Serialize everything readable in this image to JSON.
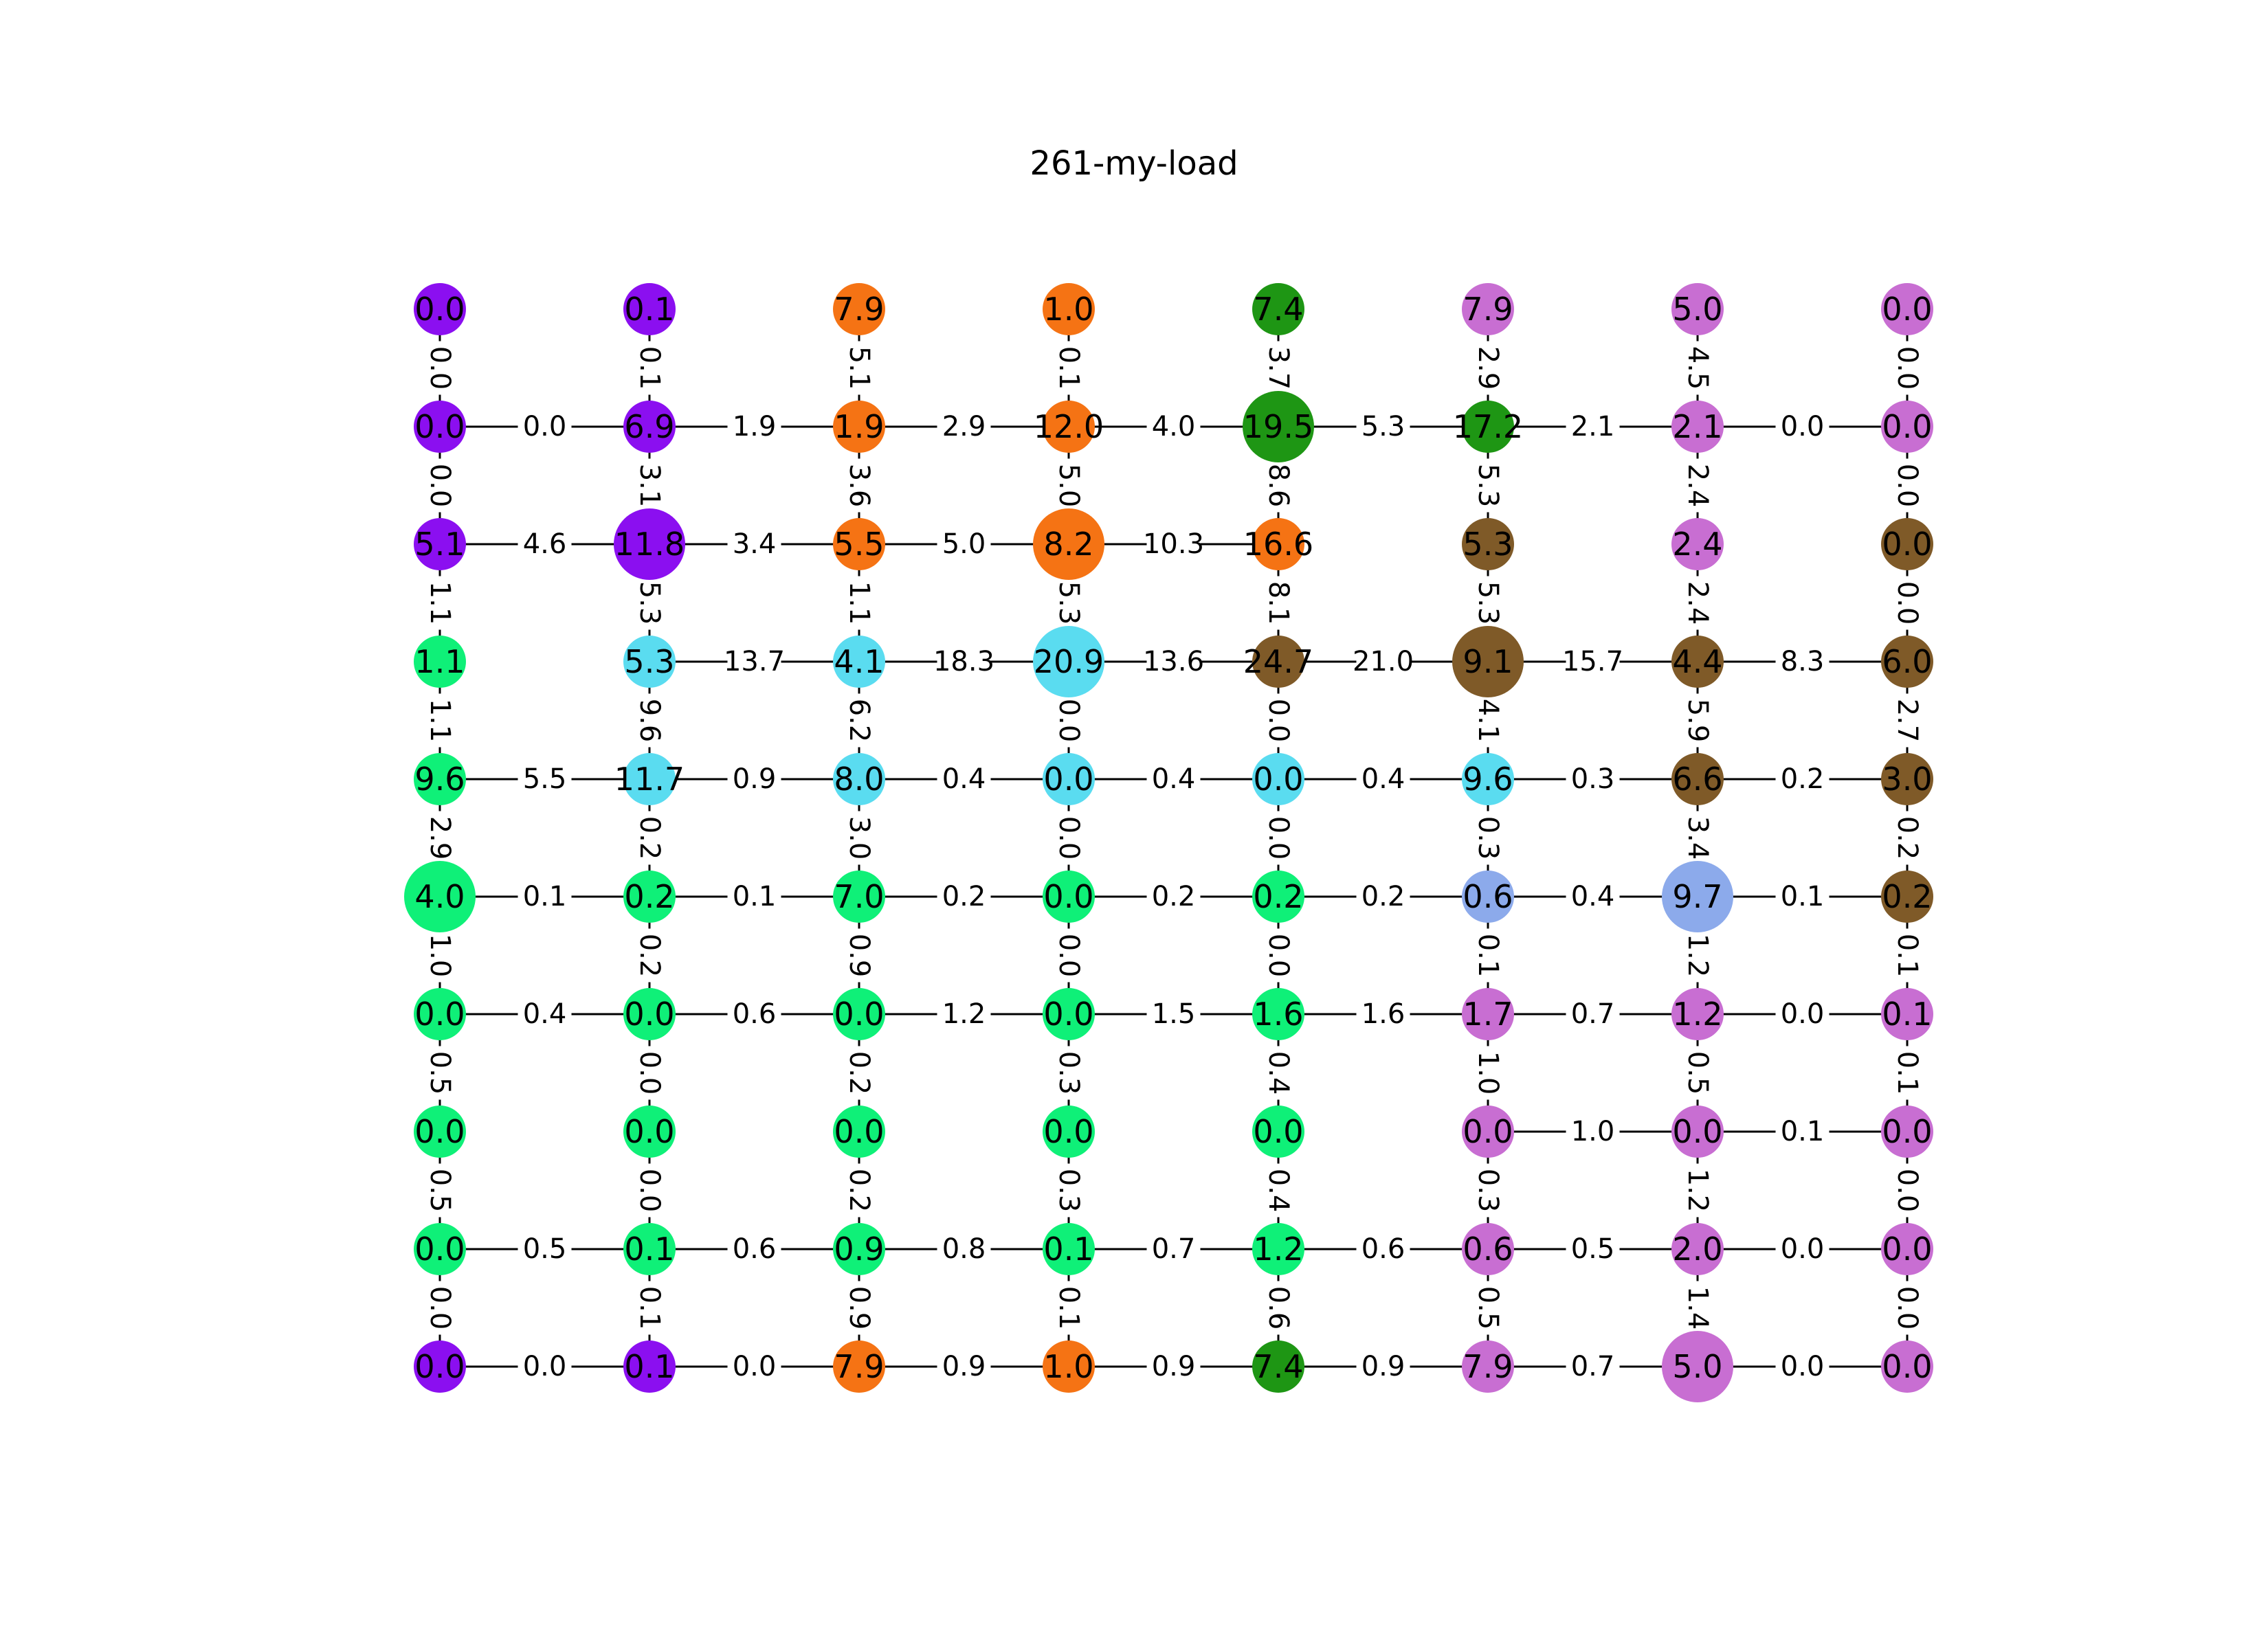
{
  "title": "261-my-load",
  "colors": {
    "purple": "#8b0ff0",
    "orange": "#f57314",
    "green": "#1e9614",
    "pink": "#c86ed2",
    "brown": "#7f5a28",
    "lime": "#0ff078",
    "cyan": "#5adcf0",
    "periwinkle": "#8caaeb",
    "edge": "#000000",
    "edge_label_bg": "#ffffff"
  },
  "chart_data": {
    "type": "grid-graph",
    "columns": 8,
    "rows": 10,
    "nodes": [
      [
        {
          "v": "0.0",
          "c": "purple",
          "w": 0
        },
        {
          "v": "0.1",
          "c": "purple",
          "w": 0
        },
        {
          "v": "7.9",
          "c": "orange",
          "w": 0
        },
        {
          "v": "1.0",
          "c": "orange",
          "w": 0
        },
        {
          "v": "7.4",
          "c": "green",
          "w": 0
        },
        {
          "v": "7.9",
          "c": "pink",
          "w": 0
        },
        {
          "v": "5.0",
          "c": "pink",
          "w": 0
        },
        {
          "v": "0.0",
          "c": "pink",
          "w": 0
        }
      ],
      [
        {
          "v": "0.0",
          "c": "purple",
          "w": 0
        },
        {
          "v": "6.9",
          "c": "purple",
          "w": 0
        },
        {
          "v": "1.9",
          "c": "orange",
          "w": 0
        },
        {
          "v": "12.0",
          "c": "orange",
          "w": 0
        },
        {
          "v": "19.5",
          "c": "green",
          "w": 1
        },
        {
          "v": "17.2",
          "c": "green",
          "w": 0
        },
        {
          "v": "2.1",
          "c": "pink",
          "w": 0
        },
        {
          "v": "0.0",
          "c": "pink",
          "w": 0
        }
      ],
      [
        {
          "v": "5.1",
          "c": "purple",
          "w": 0
        },
        {
          "v": "11.8",
          "c": "purple",
          "w": 1
        },
        {
          "v": "5.5",
          "c": "orange",
          "w": 0
        },
        {
          "v": "8.2",
          "c": "orange",
          "w": 1
        },
        {
          "v": "16.6",
          "c": "orange",
          "w": 0
        },
        {
          "v": "5.3",
          "c": "brown",
          "w": 0
        },
        {
          "v": "2.4",
          "c": "pink",
          "w": 0
        },
        {
          "v": "0.0",
          "c": "brown",
          "w": 0
        }
      ],
      [
        {
          "v": "1.1",
          "c": "lime",
          "w": 0
        },
        {
          "v": "5.3",
          "c": "cyan",
          "w": 0
        },
        {
          "v": "4.1",
          "c": "cyan",
          "w": 0
        },
        {
          "v": "20.9",
          "c": "cyan",
          "w": 1
        },
        {
          "v": "24.7",
          "c": "brown",
          "w": 0
        },
        {
          "v": "9.1",
          "c": "brown",
          "w": 1
        },
        {
          "v": "4.4",
          "c": "brown",
          "w": 0
        },
        {
          "v": "6.0",
          "c": "brown",
          "w": 0
        }
      ],
      [
        {
          "v": "9.6",
          "c": "lime",
          "w": 0
        },
        {
          "v": "11.7",
          "c": "cyan",
          "w": 0
        },
        {
          "v": "8.0",
          "c": "cyan",
          "w": 0
        },
        {
          "v": "0.0",
          "c": "cyan",
          "w": 0
        },
        {
          "v": "0.0",
          "c": "cyan",
          "w": 0
        },
        {
          "v": "9.6",
          "c": "cyan",
          "w": 0
        },
        {
          "v": "6.6",
          "c": "brown",
          "w": 0
        },
        {
          "v": "3.0",
          "c": "brown",
          "w": 0
        }
      ],
      [
        {
          "v": "4.0",
          "c": "lime",
          "w": 1
        },
        {
          "v": "0.2",
          "c": "lime",
          "w": 0
        },
        {
          "v": "7.0",
          "c": "lime",
          "w": 0
        },
        {
          "v": "0.0",
          "c": "lime",
          "w": 0
        },
        {
          "v": "0.2",
          "c": "lime",
          "w": 0
        },
        {
          "v": "0.6",
          "c": "periwinkle",
          "w": 0
        },
        {
          "v": "9.7",
          "c": "periwinkle",
          "w": 1
        },
        {
          "v": "0.2",
          "c": "brown",
          "w": 0
        }
      ],
      [
        {
          "v": "0.0",
          "c": "lime",
          "w": 0
        },
        {
          "v": "0.0",
          "c": "lime",
          "w": 0
        },
        {
          "v": "0.0",
          "c": "lime",
          "w": 0
        },
        {
          "v": "0.0",
          "c": "lime",
          "w": 0
        },
        {
          "v": "1.6",
          "c": "lime",
          "w": 0
        },
        {
          "v": "1.7",
          "c": "pink",
          "w": 0
        },
        {
          "v": "1.2",
          "c": "pink",
          "w": 0
        },
        {
          "v": "0.1",
          "c": "pink",
          "w": 0
        }
      ],
      [
        {
          "v": "0.0",
          "c": "lime",
          "w": 0
        },
        {
          "v": "0.0",
          "c": "lime",
          "w": 0
        },
        {
          "v": "0.0",
          "c": "lime",
          "w": 0
        },
        {
          "v": "0.0",
          "c": "lime",
          "w": 0
        },
        {
          "v": "0.0",
          "c": "lime",
          "w": 0
        },
        {
          "v": "0.0",
          "c": "pink",
          "w": 0
        },
        {
          "v": "0.0",
          "c": "pink",
          "w": 0
        },
        {
          "v": "0.0",
          "c": "pink",
          "w": 0
        }
      ],
      [
        {
          "v": "0.0",
          "c": "lime",
          "w": 0
        },
        {
          "v": "0.1",
          "c": "lime",
          "w": 0
        },
        {
          "v": "0.9",
          "c": "lime",
          "w": 0
        },
        {
          "v": "0.1",
          "c": "lime",
          "w": 0
        },
        {
          "v": "1.2",
          "c": "lime",
          "w": 0
        },
        {
          "v": "0.6",
          "c": "pink",
          "w": 0
        },
        {
          "v": "2.0",
          "c": "pink",
          "w": 0
        },
        {
          "v": "0.0",
          "c": "pink",
          "w": 0
        }
      ],
      [
        {
          "v": "0.0",
          "c": "purple",
          "w": 0
        },
        {
          "v": "0.1",
          "c": "purple",
          "w": 0
        },
        {
          "v": "7.9",
          "c": "orange",
          "w": 0
        },
        {
          "v": "1.0",
          "c": "orange",
          "w": 0
        },
        {
          "v": "7.4",
          "c": "green",
          "w": 0
        },
        {
          "v": "7.9",
          "c": "pink",
          "w": 0
        },
        {
          "v": "5.0",
          "c": "pink",
          "w": 1
        },
        {
          "v": "0.0",
          "c": "pink",
          "w": 0
        }
      ]
    ],
    "horizontal_edges": [
      null,
      [
        "0.0",
        "1.9",
        "2.9",
        "4.0",
        "5.3",
        "2.1",
        "0.0"
      ],
      [
        "4.6",
        "3.4",
        "5.0",
        "10.3",
        null,
        null,
        null
      ],
      [
        null,
        "13.7",
        "18.3",
        "13.6",
        "21.0",
        "15.7",
        "8.3"
      ],
      [
        "5.5",
        "0.9",
        "0.4",
        "0.4",
        "0.4",
        "0.3",
        "0.2"
      ],
      [
        "0.1",
        "0.1",
        "0.2",
        "0.2",
        "0.2",
        "0.4",
        "0.1"
      ],
      [
        "0.4",
        "0.6",
        "1.2",
        "1.5",
        "1.6",
        "0.7",
        "0.0"
      ],
      [
        null,
        null,
        null,
        null,
        null,
        "1.0",
        "0.1"
      ],
      [
        "0.5",
        "0.6",
        "0.8",
        "0.7",
        "0.6",
        "0.5",
        "0.0"
      ],
      [
        "0.0",
        "0.0",
        "0.9",
        "0.9",
        "0.9",
        "0.7",
        "0.0"
      ]
    ],
    "vertical_edges": [
      [
        "0.0",
        "0.1",
        "5.1",
        "0.1",
        "3.7",
        "2.9",
        "4.5",
        "0.0"
      ],
      [
        "0.0",
        "3.1",
        "3.6",
        "5.0",
        "8.6",
        "5.3",
        "2.4",
        "0.0"
      ],
      [
        "1.1",
        "5.3",
        "1.1",
        "5.3",
        "8.1",
        "5.3",
        "2.4",
        "0.0"
      ],
      [
        "1.1",
        "9.6",
        "6.2",
        "0.0",
        "0.0",
        "4.1",
        "5.9",
        "2.7"
      ],
      [
        "2.9",
        "0.2",
        "3.0",
        "0.0",
        "0.0",
        "0.3",
        "3.4",
        "0.2"
      ],
      [
        "1.0",
        "0.2",
        "0.9",
        "0.0",
        "0.0",
        "0.1",
        "1.2",
        "0.1"
      ],
      [
        "0.5",
        "0.0",
        "0.2",
        "0.3",
        "0.4",
        "1.0",
        "0.5",
        "0.1"
      ],
      [
        "0.5",
        "0.0",
        "0.2",
        "0.3",
        "0.4",
        "0.3",
        "1.2",
        "0.0"
      ],
      [
        "0.0",
        "0.1",
        "0.9",
        "0.1",
        "0.6",
        "0.5",
        "1.4",
        "0.0"
      ]
    ]
  }
}
